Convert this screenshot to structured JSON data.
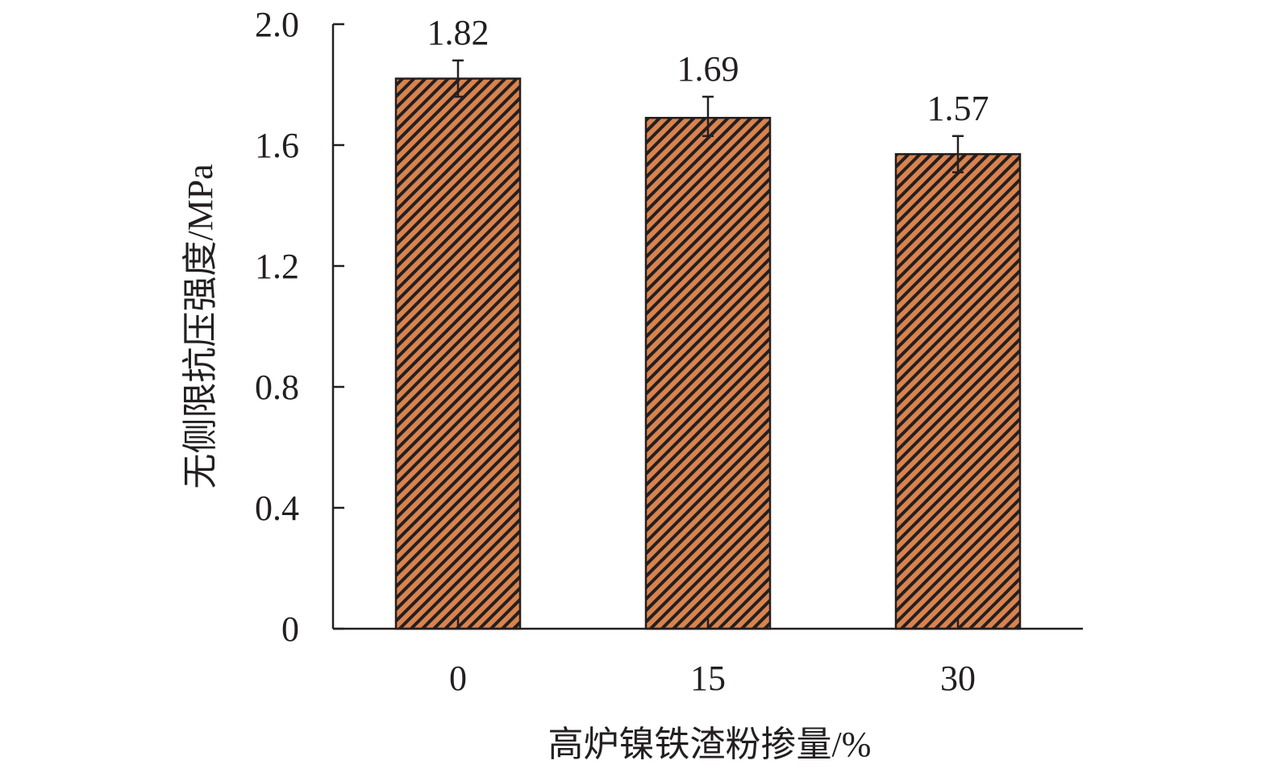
{
  "chart_data": {
    "type": "bar",
    "title": "",
    "xlabel": "高炉镍铁渣粉掺量/%",
    "ylabel": "无侧限抗压强度/MPa",
    "categories": [
      "0",
      "15",
      "30"
    ],
    "values": [
      1.82,
      1.69,
      1.57
    ],
    "data_labels": [
      "1.82",
      "1.69",
      "1.57"
    ],
    "error_bars": [
      {
        "low": 1.76,
        "high": 1.88
      },
      {
        "low": 1.63,
        "high": 1.76
      },
      {
        "low": 1.51,
        "high": 1.63
      }
    ],
    "ylim": [
      0,
      2.0
    ],
    "yticks": [
      {
        "value": 0,
        "label": "0"
      },
      {
        "value": 0.4,
        "label": "0.4"
      },
      {
        "value": 0.8,
        "label": "0.8"
      },
      {
        "value": 1.2,
        "label": "1.2"
      },
      {
        "value": 1.6,
        "label": "1.6"
      },
      {
        "value": 2.0,
        "label": "2.0"
      }
    ],
    "grid": false,
    "legend": "none",
    "colors": {
      "bar_fill": "#d9834e",
      "hatch": "#231f20",
      "axis": "#231f20"
    }
  }
}
